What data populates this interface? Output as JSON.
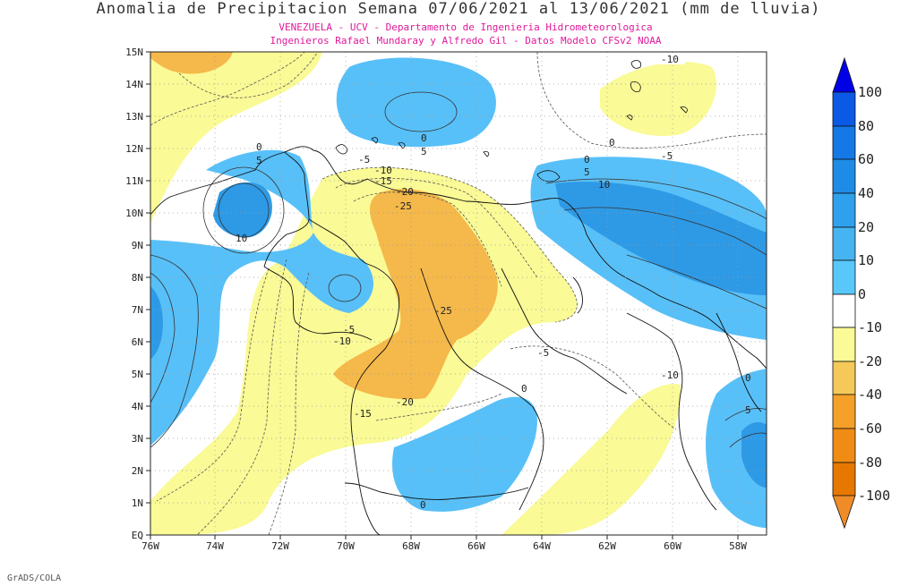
{
  "title": "Anomalia de Precipitacion Semana 07/06/2021 al 13/06/2021 (mm de lluvia)",
  "subtitle_1": "VENEZUELA - UCV - Departamento de Ingenieria Hidrometeorologica",
  "subtitle_2": "Ingenieros Rafael Mundaray y Alfredo Gil - Datos Modelo CFSv2 NOAA",
  "footer": "GrADS/COLA",
  "map": {
    "lat_labels": [
      "15N",
      "14N",
      "13N",
      "12N",
      "11N",
      "10N",
      "9N",
      "8N",
      "7N",
      "6N",
      "5N",
      "4N",
      "3N",
      "2N",
      "1N",
      "EQ"
    ],
    "lon_labels": [
      "76W",
      "74W",
      "72W",
      "70W",
      "68W",
      "66W",
      "64W",
      "62W",
      "60W",
      "58W"
    ],
    "contour_labels": [
      "-10",
      "0",
      "-5",
      "0",
      "5",
      "0",
      "5",
      "-5",
      "-10",
      "-15",
      "-20",
      "-25",
      "10",
      "10",
      "5",
      "0",
      "-5",
      "-10",
      "-25",
      "-5",
      "-15",
      "-20",
      "-10",
      "0",
      "0",
      "5",
      "0"
    ]
  },
  "colorbar": {
    "labels": [
      "100",
      "80",
      "60",
      "40",
      "20",
      "10",
      "0",
      "-10",
      "-20",
      "-40",
      "-60",
      "-80",
      "-100"
    ],
    "colors": [
      "#0000e6",
      "#0a5ae6",
      "#1478e6",
      "#1e8ce6",
      "#2ea0ec",
      "#46b4f0",
      "#58c8fa",
      "#ffffff",
      "#fafa96",
      "#f5c85a",
      "#f5a028",
      "#f08c14",
      "#e67800",
      "#f08c28"
    ]
  }
}
